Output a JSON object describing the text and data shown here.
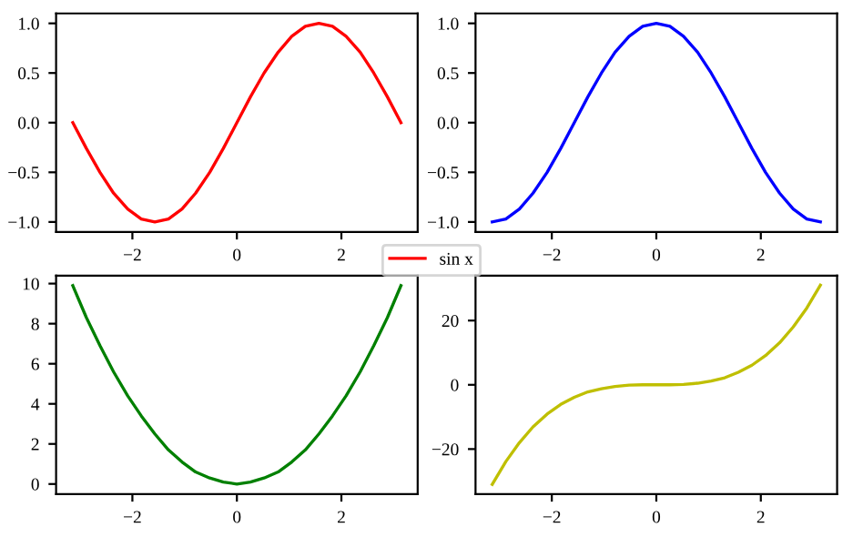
{
  "chart_data": [
    {
      "type": "line",
      "x": [
        -3.14,
        -2.88,
        -2.62,
        -2.36,
        -2.09,
        -1.83,
        -1.57,
        -1.31,
        -1.05,
        -0.79,
        -0.52,
        -0.26,
        0,
        0.26,
        0.52,
        0.79,
        1.05,
        1.31,
        1.57,
        1.83,
        2.09,
        2.36,
        2.62,
        2.88,
        3.14
      ],
      "series": [
        {
          "name": "sin x",
          "color": "#ff0000",
          "values": [
            0,
            -0.26,
            -0.5,
            -0.71,
            -0.87,
            -0.97,
            -1,
            -0.97,
            -0.87,
            -0.71,
            -0.5,
            -0.26,
            0,
            0.26,
            0.5,
            0.71,
            0.87,
            0.97,
            1,
            0.97,
            0.87,
            0.71,
            0.5,
            0.26,
            0
          ]
        }
      ],
      "xlim": [
        -3.46,
        3.46
      ],
      "xticks": [
        -2,
        0,
        2
      ],
      "ylim": [
        -1.1,
        1.1
      ],
      "yticks": [
        {
          "value": -1,
          "label": "−1.0"
        },
        {
          "value": -0.5,
          "label": "−0.5"
        },
        {
          "value": 0,
          "label": "0.0"
        },
        0.5,
        {
          "value": 1,
          "label": "1.0"
        }
      ],
      "legend": "bottom right"
    },
    {
      "type": "line",
      "x": [
        -3.14,
        -2.88,
        -2.62,
        -2.36,
        -2.09,
        -1.83,
        -1.57,
        -1.31,
        -1.05,
        -0.79,
        -0.52,
        -0.26,
        0,
        0.26,
        0.52,
        0.79,
        1.05,
        1.31,
        1.57,
        1.83,
        2.09,
        2.36,
        2.62,
        2.88,
        3.14
      ],
      "series": [
        {
          "color": "#0000ff",
          "values": [
            -1,
            -0.97,
            -0.87,
            -0.71,
            -0.5,
            -0.26,
            0,
            0.26,
            0.5,
            0.71,
            0.87,
            0.97,
            1,
            0.97,
            0.87,
            0.71,
            0.5,
            0.26,
            0,
            -0.26,
            -0.5,
            -0.71,
            -0.87,
            -0.97,
            -1
          ]
        }
      ],
      "xlim": [
        -3.46,
        3.46
      ],
      "xticks": [
        -2,
        0,
        2
      ],
      "ylim": [
        -1.1,
        1.1
      ],
      "yticks": [
        {
          "value": -1,
          "label": "−1.0"
        },
        {
          "value": -0.5,
          "label": "−0.5"
        },
        {
          "value": 0,
          "label": "0.0"
        },
        0.5,
        {
          "value": 1,
          "label": "1.0"
        }
      ]
    },
    {
      "type": "line",
      "x": [
        -3.14,
        -2.88,
        -2.62,
        -2.36,
        -2.09,
        -1.83,
        -1.57,
        -1.31,
        -1.05,
        -0.79,
        -0.52,
        -0.26,
        0,
        0.26,
        0.52,
        0.79,
        1.05,
        1.31,
        1.57,
        1.83,
        2.09,
        2.36,
        2.62,
        2.88,
        3.14
      ],
      "series": [
        {
          "color": "#008000",
          "values": [
            9.9,
            8.3,
            6.9,
            5.6,
            4.4,
            3.4,
            2.5,
            1.7,
            1.1,
            0.6,
            0.3,
            0.1,
            0,
            0.1,
            0.3,
            0.6,
            1.1,
            1.7,
            2.5,
            3.4,
            4.4,
            5.6,
            6.9,
            8.3,
            9.9
          ]
        }
      ],
      "xlim": [
        -3.46,
        3.46
      ],
      "xticks": [
        -2,
        0,
        2
      ],
      "ylim": [
        -0.5,
        10.4
      ],
      "yticks": [
        0,
        2,
        4,
        6,
        8,
        10
      ]
    },
    {
      "type": "line",
      "x": [
        -3.14,
        -2.88,
        -2.62,
        -2.36,
        -2.09,
        -1.83,
        -1.57,
        -1.31,
        -1.05,
        -0.79,
        -0.52,
        -0.26,
        0,
        0.26,
        0.52,
        0.79,
        1.05,
        1.31,
        1.57,
        1.83,
        2.09,
        2.36,
        2.62,
        2.88,
        3.14
      ],
      "series": [
        {
          "color": "#bfbf00",
          "values": [
            -31.0,
            -23.9,
            -18.0,
            -13.1,
            -9.1,
            -6.1,
            -3.9,
            -2.2,
            -1.2,
            -0.5,
            -0.1,
            0,
            0,
            0,
            0.1,
            0.5,
            1.2,
            2.2,
            3.9,
            6.1,
            9.1,
            13.1,
            18.0,
            23.9,
            31.0
          ]
        }
      ],
      "xlim": [
        -3.46,
        3.46
      ],
      "xticks": [
        -2,
        0,
        2
      ],
      "ylim": [
        -34,
        34
      ],
      "yticks": [
        -20,
        0,
        20
      ]
    }
  ]
}
